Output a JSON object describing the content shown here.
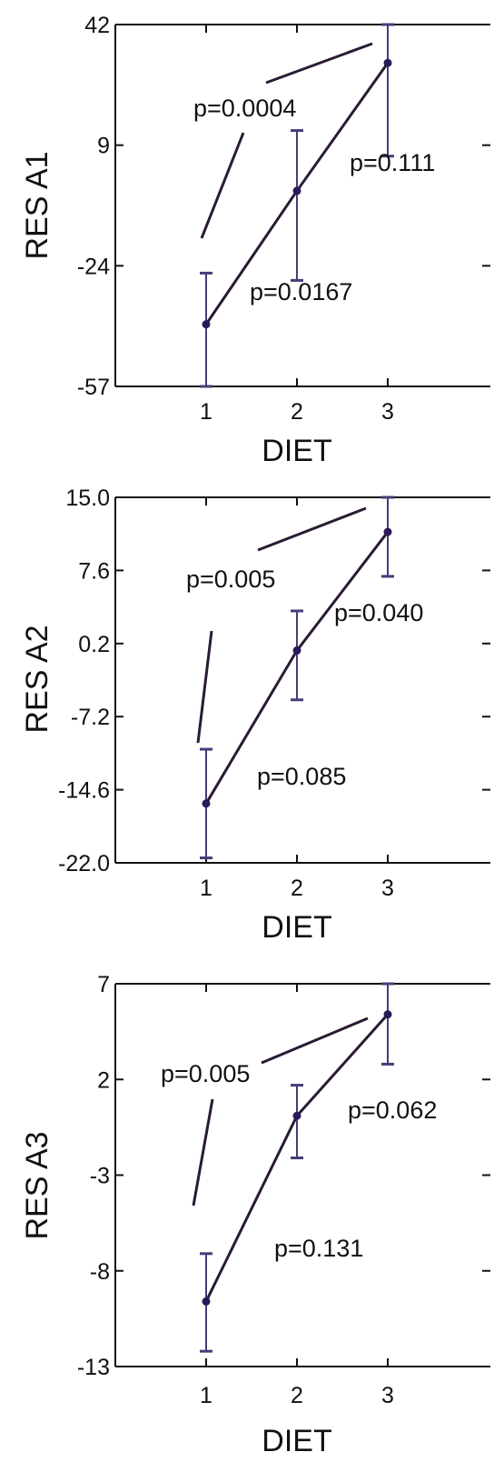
{
  "chart_data": [
    {
      "type": "line",
      "xlabel": "DIET",
      "ylabel": "RES A1",
      "x": [
        1,
        2,
        3
      ],
      "xticks": [
        "1",
        "2",
        "3"
      ],
      "ylim": [
        -57,
        42
      ],
      "yticks": [
        "42",
        "9",
        "-24",
        "-57"
      ],
      "means": [
        -40,
        -3.5,
        31.5
      ],
      "err_low": [
        -57,
        -28,
        6
      ],
      "err_high": [
        -26,
        13,
        42
      ],
      "annotations": [
        "p=0.0004",
        "p=0.111",
        "p=0.0167"
      ],
      "colors": {
        "line": "#2a1a33",
        "errorbar": "#4a3a7a",
        "point": "#2a1a5a"
      }
    },
    {
      "type": "line",
      "xlabel": "DIET",
      "ylabel": "RES A2",
      "x": [
        1,
        2,
        3
      ],
      "xticks": [
        "1",
        "2",
        "3"
      ],
      "ylim": [
        -22.0,
        15.0
      ],
      "yticks": [
        "15.0",
        "7.6",
        "0.2",
        "-7.2",
        "-14.6",
        "-22.0"
      ],
      "means": [
        -16.0,
        -0.5,
        11.5
      ],
      "err_low": [
        -21.5,
        -5.5,
        7.0
      ],
      "err_high": [
        -10.5,
        3.5,
        15.0
      ],
      "annotations": [
        "p=0.005",
        "p=0.040",
        "p=0.085"
      ],
      "colors": {
        "line": "#2a1a33",
        "errorbar": "#4a3a7a",
        "point": "#2a1a5a"
      }
    },
    {
      "type": "line",
      "xlabel": "DIET",
      "ylabel": "RES A3",
      "x": [
        1,
        2,
        3
      ],
      "xticks": [
        "1",
        "2",
        "3"
      ],
      "ylim": [
        -13,
        7
      ],
      "yticks": [
        "7",
        "2",
        "-3",
        "-8",
        "-13"
      ],
      "means": [
        -9.6,
        0.1,
        5.4
      ],
      "err_low": [
        -12.2,
        -2.1,
        2.8
      ],
      "err_high": [
        -7.1,
        1.7,
        7.0
      ],
      "annotations": [
        "p=0.005",
        "p=0.062",
        "p=0.131"
      ],
      "colors": {
        "line": "#2a1a33",
        "errorbar": "#4a3a7a",
        "point": "#2a1a5a"
      }
    }
  ]
}
